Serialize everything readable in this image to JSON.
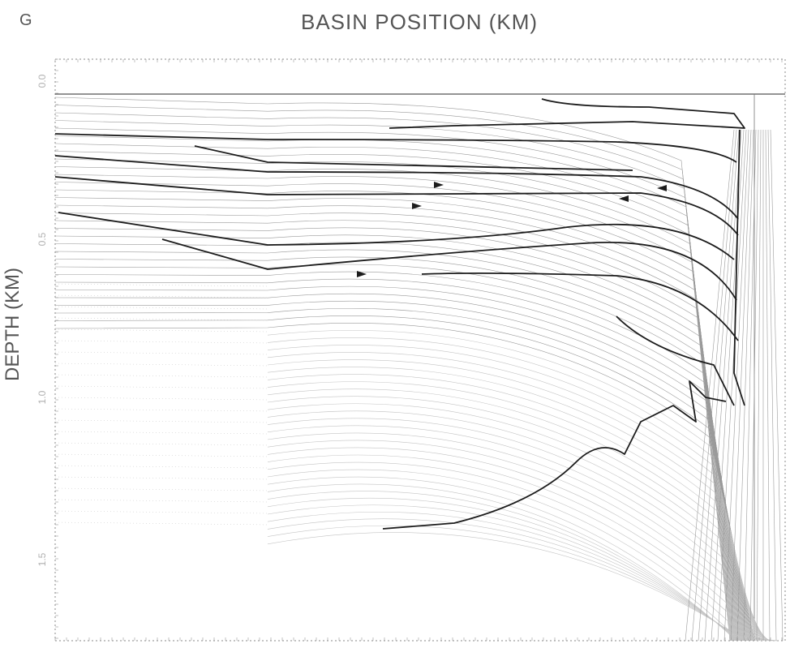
{
  "panel_letter": "G",
  "chart_data": {
    "type": "line",
    "title": "BASIN POSITION (KM)",
    "xlabel": "",
    "ylabel": "DEPTH (KM)",
    "y_ticks": [
      "0.0",
      "0.5",
      "1.0",
      "1.5"
    ],
    "y_reversed": true,
    "grid": false
  },
  "colors": {
    "background": "#ffffff",
    "thin_line": "#9a9a9a",
    "faint_line": "#c4c4c4",
    "bold_line": "#1c1c1c"
  }
}
